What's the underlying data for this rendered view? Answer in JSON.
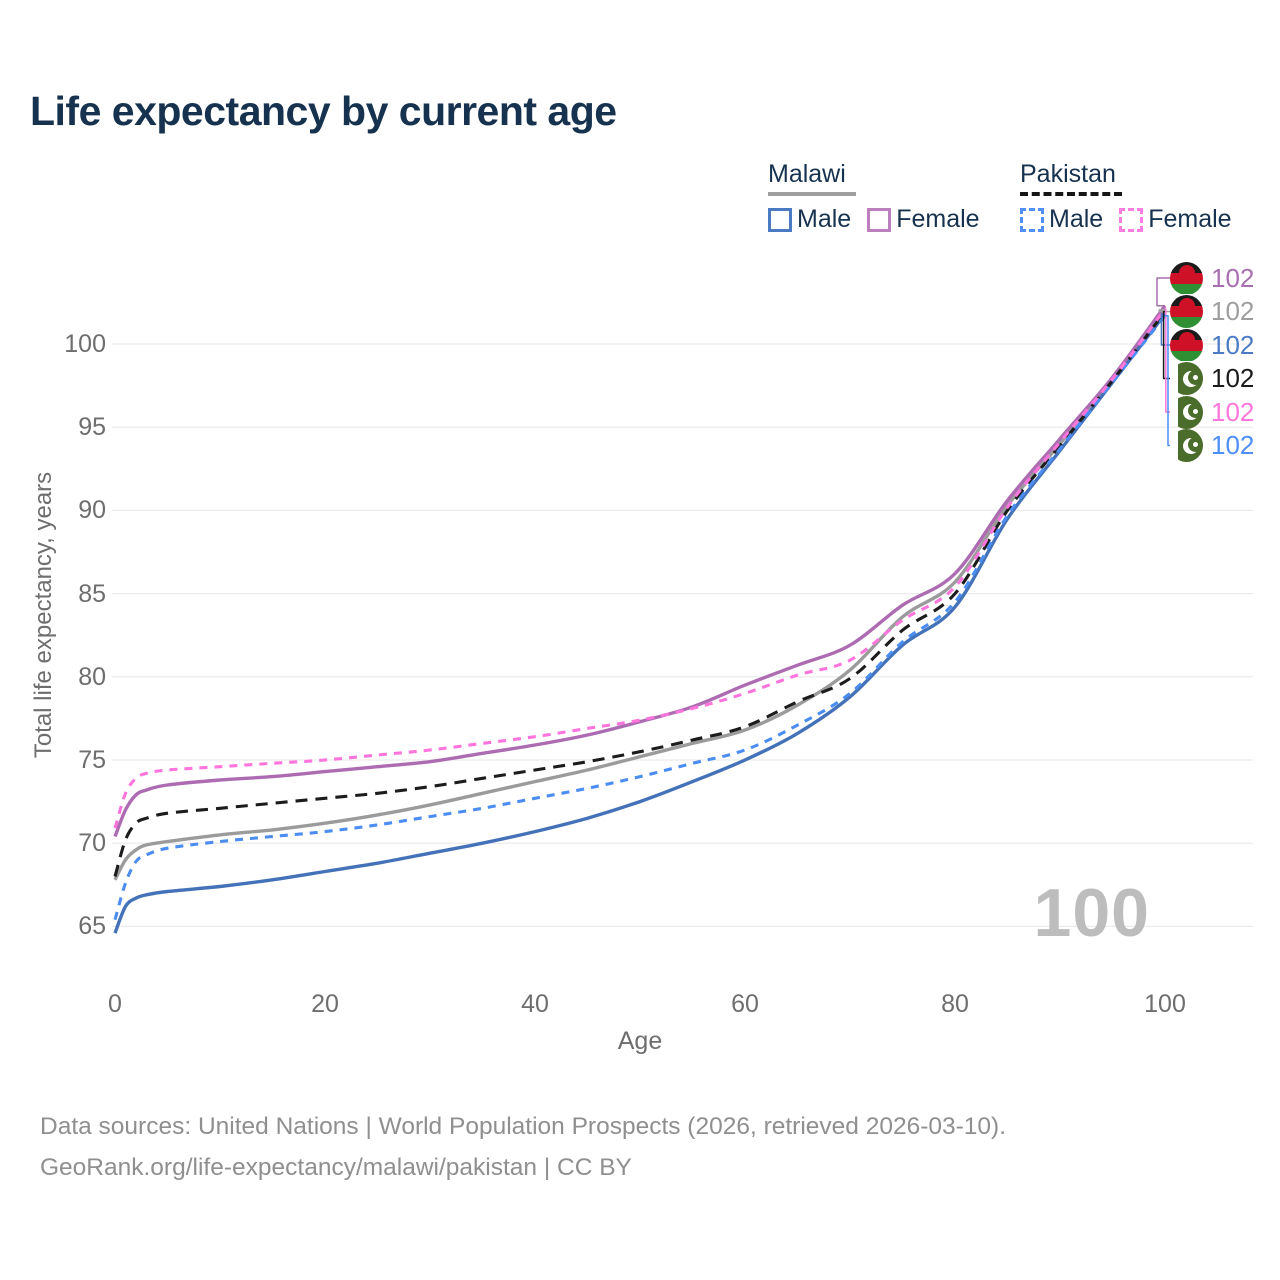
{
  "title": "Life expectancy by current age",
  "legend": {
    "malawi": {
      "title": "Malawi",
      "male": "Male",
      "female": "Female"
    },
    "pakistan": {
      "title": "Pakistan",
      "male": "Male",
      "female": "Female"
    }
  },
  "axes": {
    "x_label": "Age",
    "y_label": "Total life expectancy, years"
  },
  "watermark": "100",
  "footer": {
    "line1": "Data sources: United Nations | World Population Prospects (2026, retrieved 2026-03-10).",
    "line2": "GeoRank.org/life-expectancy/malawi/pakistan | CC BY"
  },
  "chart_data": {
    "type": "line",
    "title": "Life expectancy by current age",
    "xlabel": "Age",
    "ylabel": "Total life expectancy, years",
    "xlim": [
      0,
      100
    ],
    "ylim": [
      63,
      103
    ],
    "xticks": [
      0,
      20,
      40,
      60,
      80,
      100
    ],
    "yticks": [
      65,
      70,
      75,
      80,
      85,
      90,
      95,
      100
    ],
    "grid": "horizontal",
    "legend_position": "top-right",
    "ages": [
      0,
      1,
      2,
      3,
      5,
      10,
      15,
      20,
      25,
      30,
      35,
      40,
      45,
      50,
      55,
      60,
      65,
      70,
      75,
      80,
      85,
      90,
      95,
      100
    ],
    "series": [
      {
        "id": "malawi-all",
        "name": "Malawi",
        "country": "Malawi",
        "sex": "Both",
        "color": "#9b9b9b",
        "dashed": false,
        "values": [
          67.8,
          69.0,
          69.6,
          69.9,
          70.1,
          70.5,
          70.8,
          71.2,
          71.7,
          72.3,
          73.0,
          73.7,
          74.4,
          75.2,
          76.0,
          76.8,
          78.3,
          80.4,
          83.6,
          85.7,
          90.3,
          94.0,
          97.9,
          102.05
        ]
      },
      {
        "id": "malawi-male",
        "name": "Malawi Male",
        "country": "Malawi",
        "sex": "Male",
        "color": "#4472b9",
        "dashed": false,
        "values": [
          64.6,
          66.2,
          66.7,
          66.9,
          67.1,
          67.4,
          67.8,
          68.3,
          68.8,
          69.4,
          70.0,
          70.7,
          71.5,
          72.5,
          73.7,
          75.0,
          76.6,
          78.8,
          81.9,
          84.2,
          89.5,
          93.6,
          97.7,
          101.8
        ]
      },
      {
        "id": "malawi-female",
        "name": "Malawi Female",
        "country": "Malawi",
        "sex": "Female",
        "color": "#ad6cb2",
        "dashed": false,
        "values": [
          70.4,
          72.0,
          72.9,
          73.2,
          73.5,
          73.8,
          74.0,
          74.3,
          74.6,
          74.9,
          75.4,
          75.9,
          76.5,
          77.3,
          78.2,
          79.5,
          80.7,
          81.9,
          84.3,
          86.2,
          90.6,
          94.3,
          98.0,
          102.3
        ]
      },
      {
        "id": "pakistan-all",
        "name": "Pakistan",
        "country": "Pakistan",
        "sex": "Both",
        "color": "#1c1c1c",
        "dashed": true,
        "dash": "12 8",
        "values": [
          68.0,
          70.2,
          71.2,
          71.5,
          71.8,
          72.1,
          72.4,
          72.7,
          73.0,
          73.4,
          73.9,
          74.4,
          74.9,
          75.5,
          76.2,
          77.0,
          78.5,
          79.9,
          82.8,
          85.0,
          90.0,
          93.9,
          97.8,
          101.95
        ]
      },
      {
        "id": "pakistan-male",
        "name": "Pakistan Male",
        "country": "Pakistan",
        "sex": "Male",
        "color": "#4b8df2",
        "dashed": true,
        "dash": "8 7",
        "values": [
          65.4,
          67.6,
          68.9,
          69.3,
          69.7,
          70.1,
          70.4,
          70.7,
          71.1,
          71.6,
          72.1,
          72.7,
          73.3,
          74.0,
          74.8,
          75.6,
          77.1,
          79.0,
          82.1,
          84.5,
          89.7,
          93.7,
          97.7,
          101.7
        ]
      },
      {
        "id": "pakistan-female",
        "name": "Pakistan Female",
        "country": "Pakistan",
        "sex": "Female",
        "color": "#ff74dd",
        "dashed": true,
        "dash": "8 7",
        "values": [
          70.9,
          73.0,
          73.9,
          74.2,
          74.4,
          74.6,
          74.8,
          75.0,
          75.3,
          75.6,
          76.0,
          76.4,
          76.9,
          77.4,
          78.1,
          79.0,
          80.1,
          81.0,
          83.4,
          85.4,
          90.2,
          94.1,
          97.9,
          102.1
        ]
      }
    ],
    "endpoints": [
      {
        "series": 2,
        "flag": "malawi",
        "label": "102",
        "color": "#a86fb0"
      },
      {
        "series": 0,
        "flag": "malawi",
        "label": "102",
        "color": "#9e9e9e"
      },
      {
        "series": 1,
        "flag": "malawi",
        "label": "102",
        "color": "#4a7bc4"
      },
      {
        "series": 3,
        "flag": "pakistan",
        "label": "102",
        "color": "#1a1a1a"
      },
      {
        "series": 5,
        "flag": "pakistan",
        "label": "102",
        "color": "#ff77dd"
      },
      {
        "series": 4,
        "flag": "pakistan",
        "label": "102",
        "color": "#4d8ef7"
      }
    ]
  }
}
